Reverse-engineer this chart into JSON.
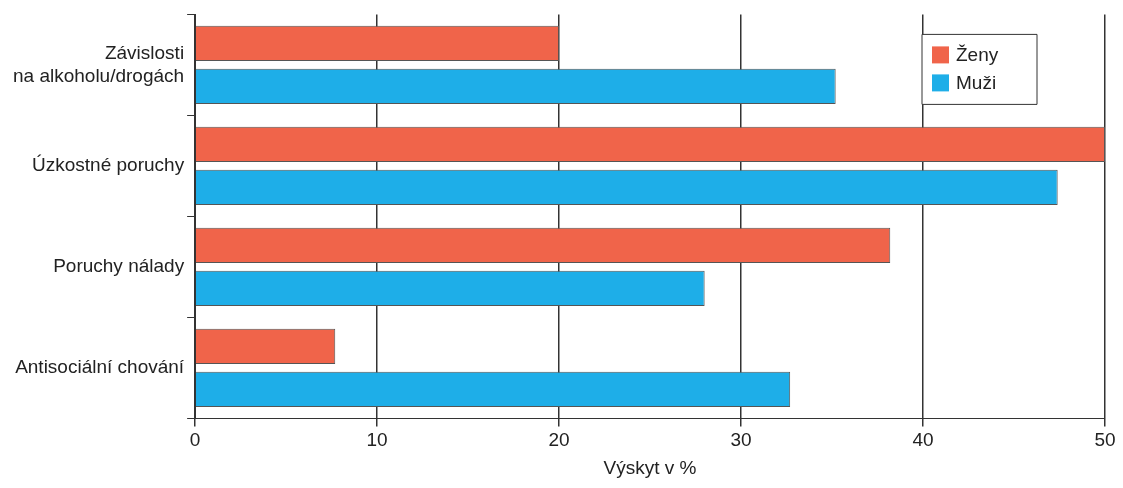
{
  "chart_data": {
    "type": "bar",
    "orientation": "horizontal",
    "xlabel": "Výskyt v %",
    "categories": [
      "Závislosti\nna alkoholu/drogách",
      "Úzkostné poruchy",
      "Poruchy nálady",
      "Antisociální chování"
    ],
    "series": [
      {
        "name": "Ženy",
        "color": "#f0644a",
        "values": [
          20,
          50,
          38.2,
          7.7
        ]
      },
      {
        "name": "Muži",
        "color": "#1eaee8",
        "values": [
          35.2,
          47.4,
          28,
          32.7
        ]
      }
    ],
    "xlim": [
      0,
      50
    ],
    "xticks": [
      0,
      10,
      20,
      30,
      40,
      50
    ],
    "grid": "x",
    "legend": "top right"
  }
}
